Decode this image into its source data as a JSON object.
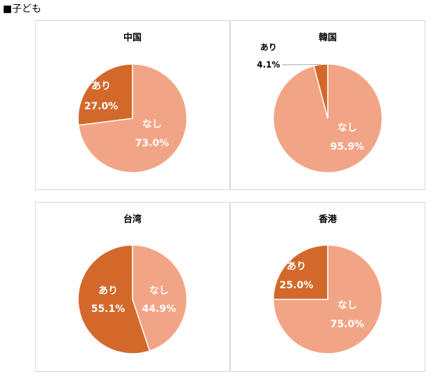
{
  "heading": "■子ども",
  "colors": {
    "nashi": "#F2A586",
    "ari": "#D2692B"
  },
  "chart_data": [
    {
      "type": "pie",
      "title": "中国",
      "slices": [
        {
          "label": "なし",
          "value": 73.0,
          "display": "73.0%"
        },
        {
          "label": "あり",
          "value": 27.0,
          "display": "27.0%"
        }
      ]
    },
    {
      "type": "pie",
      "title": "韓国",
      "slices": [
        {
          "label": "なし",
          "value": 95.9,
          "display": "95.9%"
        },
        {
          "label": "あり",
          "value": 4.1,
          "display": "4.1%"
        }
      ]
    },
    {
      "type": "pie",
      "title": "台湾",
      "slices": [
        {
          "label": "なし",
          "value": 44.9,
          "display": "44.9%"
        },
        {
          "label": "あり",
          "value": 55.1,
          "display": "55.1%"
        }
      ]
    },
    {
      "type": "pie",
      "title": "香港",
      "slices": [
        {
          "label": "なし",
          "value": 75.0,
          "display": "75.0%"
        },
        {
          "label": "あり",
          "value": 25.0,
          "display": "25.0%"
        }
      ]
    }
  ]
}
